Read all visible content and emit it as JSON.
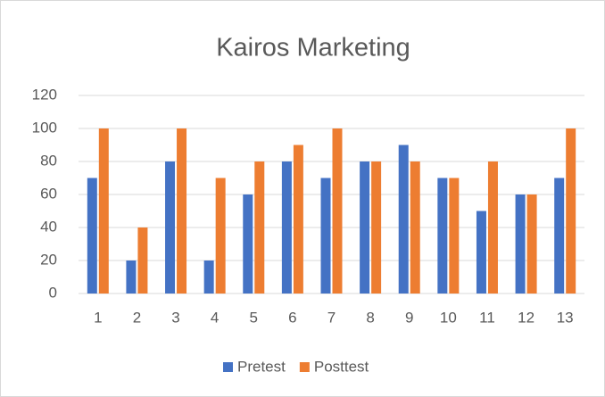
{
  "chart_data": {
    "type": "bar",
    "title": "Kairos Marketing",
    "categories": [
      "1",
      "2",
      "3",
      "4",
      "5",
      "6",
      "7",
      "8",
      "9",
      "10",
      "11",
      "12",
      "13"
    ],
    "series": [
      {
        "name": "Pretest",
        "color": "#4472c4",
        "values": [
          70,
          20,
          80,
          20,
          60,
          80,
          70,
          80,
          90,
          70,
          50,
          60,
          70
        ]
      },
      {
        "name": "Posttest",
        "color": "#ed7d31",
        "values": [
          100,
          40,
          100,
          70,
          80,
          90,
          100,
          80,
          80,
          70,
          80,
          60,
          100
        ]
      }
    ],
    "ylim": [
      0,
      120
    ],
    "yticks": [
      0,
      20,
      40,
      60,
      80,
      100,
      120
    ],
    "grid": true,
    "legend": "bottom"
  }
}
